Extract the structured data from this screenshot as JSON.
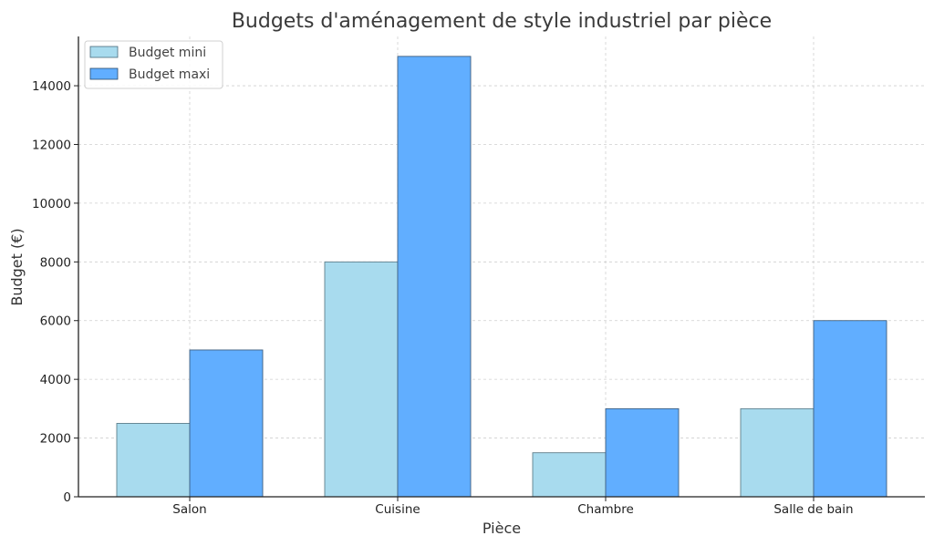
{
  "chart_data": {
    "type": "bar",
    "title": "Budgets d'aménagement de style industriel par pièce",
    "xlabel": "Pièce",
    "ylabel": "Budget (€)",
    "categories": [
      "Salon",
      "Cuisine",
      "Chambre",
      "Salle de bain"
    ],
    "series": [
      {
        "name": "Budget mini",
        "values": [
          2500,
          8000,
          1500,
          3000
        ],
        "color": "#a8dbee"
      },
      {
        "name": "Budget maxi",
        "values": [
          5000,
          15000,
          3000,
          6000
        ],
        "color": "#61aeff"
      }
    ],
    "yticks": [
      0,
      2000,
      4000,
      6000,
      8000,
      10000,
      12000,
      14000
    ],
    "ylim": [
      0,
      15700
    ],
    "grid": true,
    "legend_position": "upper left"
  }
}
